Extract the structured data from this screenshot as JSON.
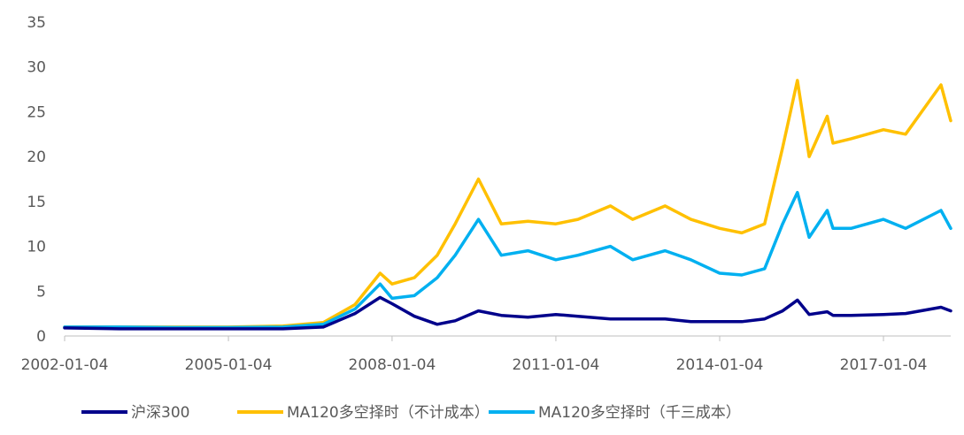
{
  "chart_data": {
    "type": "line",
    "title": "",
    "xlabel": "",
    "ylabel": "",
    "ylim": [
      0,
      35
    ],
    "yticks": [
      "0",
      "5",
      "10",
      "15",
      "20",
      "25",
      "30",
      "35"
    ],
    "xticks": [
      "2002-01-04",
      "2005-01-04",
      "2008-01-04",
      "2011-01-04",
      "2014-01-04",
      "2017-01-04"
    ],
    "xrange": [
      "2002-01-04",
      "2018-03-30"
    ],
    "grid": false,
    "legend_position": "bottom",
    "series": [
      {
        "name": "沪深300",
        "color": "#00008B",
        "x": [
          "2002-01-04",
          "2003-01-04",
          "2004-01-04",
          "2005-01-04",
          "2006-01-04",
          "2006-10-01",
          "2007-05-01",
          "2007-10-16",
          "2008-01-04",
          "2008-06-01",
          "2008-11-01",
          "2009-03-01",
          "2009-08-04",
          "2010-01-04",
          "2010-07-01",
          "2011-01-04",
          "2011-06-01",
          "2012-01-04",
          "2012-06-01",
          "2013-01-04",
          "2013-06-25",
          "2014-01-04",
          "2014-06-01",
          "2014-11-01",
          "2015-03-01",
          "2015-06-08",
          "2015-08-26",
          "2015-12-25",
          "2016-02-01",
          "2016-06-01",
          "2017-01-04",
          "2017-06-01",
          "2018-01-24",
          "2018-03-30"
        ],
        "values": [
          0.9,
          0.8,
          0.8,
          0.8,
          0.8,
          1.0,
          2.5,
          4.3,
          3.6,
          2.2,
          1.3,
          1.7,
          2.8,
          2.3,
          2.1,
          2.4,
          2.2,
          1.9,
          1.9,
          1.9,
          1.6,
          1.6,
          1.6,
          1.9,
          2.8,
          4.0,
          2.4,
          2.7,
          2.3,
          2.3,
          2.4,
          2.5,
          3.2,
          2.8
        ]
      },
      {
        "name": "MA120多空择时（不计成本）",
        "color": "#FFC000",
        "x": [
          "2002-01-04",
          "2003-01-04",
          "2004-01-04",
          "2005-01-04",
          "2006-01-04",
          "2006-10-01",
          "2007-05-01",
          "2007-10-16",
          "2008-01-04",
          "2008-06-01",
          "2008-11-01",
          "2009-03-01",
          "2009-08-04",
          "2010-01-04",
          "2010-07-01",
          "2011-01-04",
          "2011-06-01",
          "2012-01-04",
          "2012-06-01",
          "2013-01-04",
          "2013-06-25",
          "2014-01-04",
          "2014-06-01",
          "2014-11-01",
          "2015-03-01",
          "2015-06-08",
          "2015-08-26",
          "2015-12-25",
          "2016-02-01",
          "2016-06-01",
          "2017-01-04",
          "2017-06-01",
          "2018-01-24",
          "2018-03-30"
        ],
        "values": [
          1.0,
          1.0,
          1.0,
          1.0,
          1.1,
          1.5,
          3.5,
          7.0,
          5.8,
          6.5,
          9.0,
          12.5,
          17.5,
          12.5,
          12.8,
          12.5,
          13.0,
          14.5,
          13.0,
          14.5,
          13.0,
          12.0,
          11.5,
          12.5,
          21.0,
          28.5,
          20.0,
          24.5,
          21.5,
          22.0,
          23.0,
          22.5,
          28.0,
          24.0
        ]
      },
      {
        "name": "MA120多空择时（千三成本）",
        "color": "#00B0F0",
        "x": [
          "2002-01-04",
          "2003-01-04",
          "2004-01-04",
          "2005-01-04",
          "2006-01-04",
          "2006-10-01",
          "2007-05-01",
          "2007-10-16",
          "2008-01-04",
          "2008-06-01",
          "2008-11-01",
          "2009-03-01",
          "2009-08-04",
          "2010-01-04",
          "2010-07-01",
          "2011-01-04",
          "2011-06-01",
          "2012-01-04",
          "2012-06-01",
          "2013-01-04",
          "2013-06-25",
          "2014-01-04",
          "2014-06-01",
          "2014-11-01",
          "2015-03-01",
          "2015-06-08",
          "2015-08-26",
          "2015-12-25",
          "2016-02-01",
          "2016-06-01",
          "2017-01-04",
          "2017-06-01",
          "2018-01-24",
          "2018-03-30"
        ],
        "values": [
          1.0,
          1.0,
          0.95,
          0.95,
          1.0,
          1.3,
          3.0,
          5.8,
          4.2,
          4.5,
          6.5,
          9.0,
          13.0,
          9.0,
          9.5,
          8.5,
          9.0,
          10.0,
          8.5,
          9.5,
          8.5,
          7.0,
          6.8,
          7.5,
          12.5,
          16.0,
          11.0,
          14.0,
          12.0,
          12.0,
          13.0,
          12.0,
          14.0,
          12.0
        ]
      }
    ]
  }
}
